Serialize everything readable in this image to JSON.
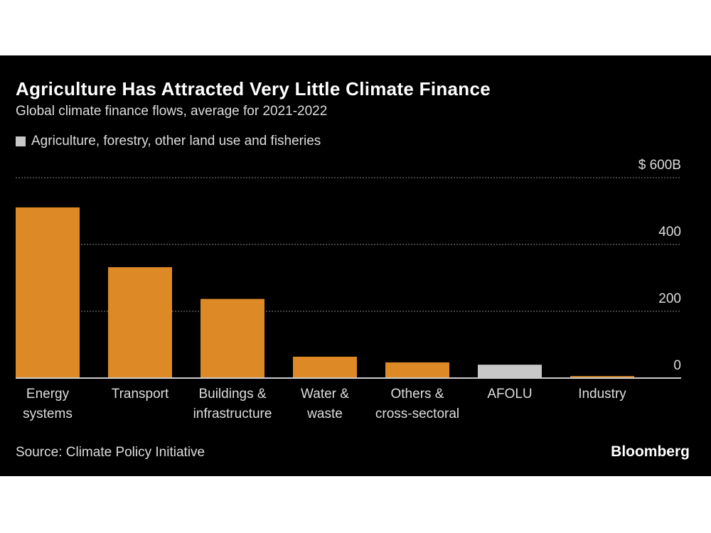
{
  "header": {
    "title": "Agriculture Has Attracted Very Little Climate Finance",
    "subtitle": "Global climate finance flows, average for 2021-2022"
  },
  "legend": {
    "label": "Agriculture, forestry, other land use and fisheries",
    "color": "#c8c8c8"
  },
  "footer": {
    "source": "Source: Climate Policy Initiative",
    "logo": "Bloomberg"
  },
  "chart_data": {
    "type": "bar",
    "categories": [
      [
        "Energy",
        "systems"
      ],
      [
        "Transport"
      ],
      [
        "Buildings &",
        "infrastructure"
      ],
      [
        "Water &",
        "waste"
      ],
      [
        "Others &",
        "cross-sectoral"
      ],
      [
        "AFOLU"
      ],
      [
        "Industry"
      ]
    ],
    "values": [
      511,
      332,
      237,
      64,
      47,
      40,
      6
    ],
    "highlight": [
      false,
      false,
      false,
      false,
      false,
      true,
      false
    ],
    "colors": {
      "default": "#dd8a26",
      "highlight": "#c8c8c8"
    },
    "yticks": [
      "0",
      "200",
      "400",
      "$ 600B"
    ],
    "ytick_values": [
      0,
      200,
      400,
      600
    ],
    "ylim": [
      0,
      600
    ],
    "grid": true,
    "axis_position": "right"
  }
}
